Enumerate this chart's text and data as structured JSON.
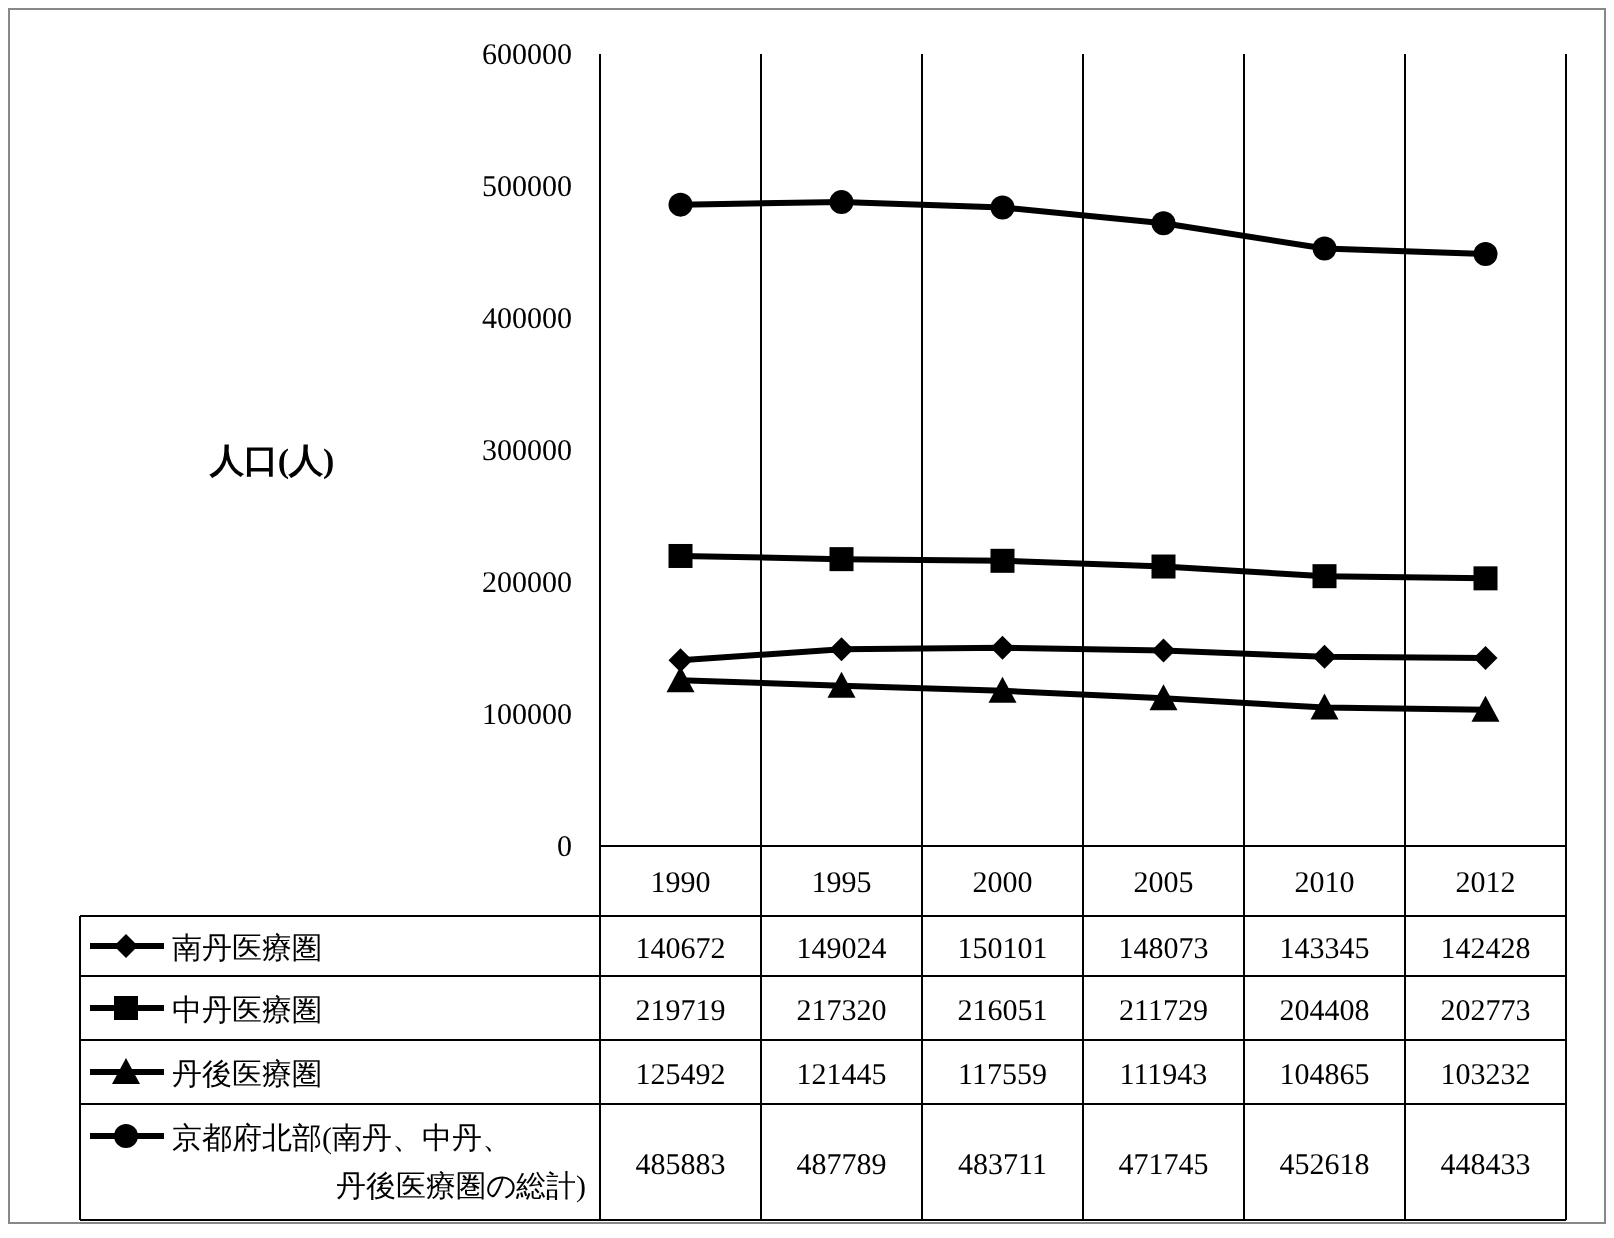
{
  "chart_data": {
    "type": "line",
    "ylabel": "人口(人)",
    "categories": [
      "1990",
      "1995",
      "2000",
      "2005",
      "2010",
      "2012"
    ],
    "ylim": [
      0,
      600000
    ],
    "yticks": [
      0,
      100000,
      200000,
      300000,
      400000,
      500000,
      600000
    ],
    "grid": "x",
    "legend": "bottom",
    "data_labels": true,
    "line_style": "solid",
    "series": [
      {
        "name": "南丹医療圏",
        "color": "#000000",
        "marker": "diamond",
        "values": [
          140672,
          149024,
          150101,
          148073,
          143345,
          142428
        ]
      },
      {
        "name": "中丹医療圏",
        "color": "#000000",
        "marker": "square",
        "values": [
          219719,
          217320,
          216051,
          211729,
          204408,
          202773
        ]
      },
      {
        "name": "丹後医療圏",
        "color": "#000000",
        "marker": "triangle",
        "values": [
          125492,
          121445,
          117559,
          111943,
          104865,
          103232
        ]
      },
      {
        "name": "京都府北部(南丹、中丹、丹後医療圏の総計)",
        "color": "#000000",
        "marker": "circle",
        "values": [
          485883,
          487789,
          483711,
          471745,
          452618,
          448433
        ]
      }
    ]
  }
}
